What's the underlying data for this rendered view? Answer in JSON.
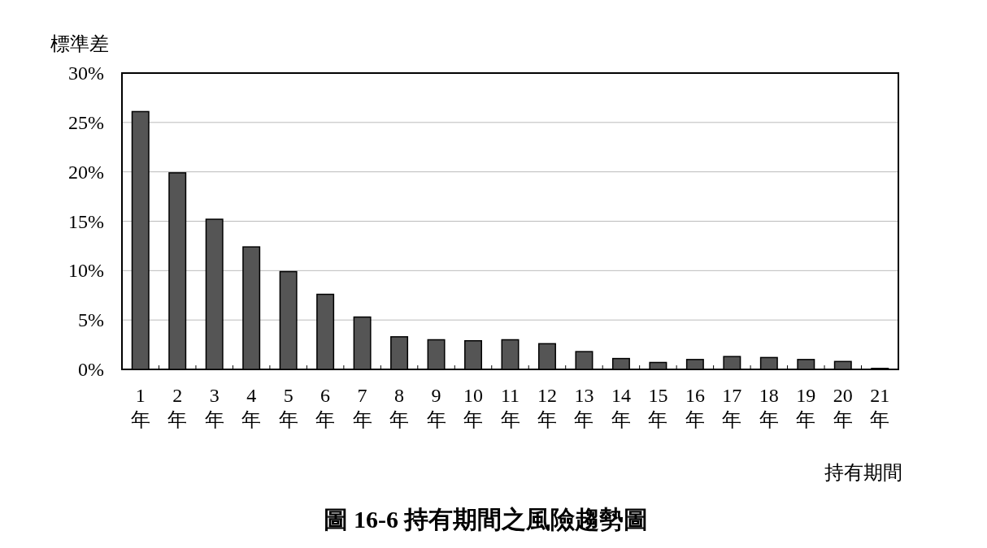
{
  "chart_data": {
    "type": "bar",
    "title": "圖 16-6 持有期間之風險趨勢圖",
    "xlabel": "持有期間",
    "ylabel": "標準差",
    "categories": [
      "1\n年",
      "2\n年",
      "3\n年",
      "4\n年",
      "5\n年",
      "6\n年",
      "7\n年",
      "8\n年",
      "9\n年",
      "10\n年",
      "11\n年",
      "12\n年",
      "13\n年",
      "14\n年",
      "15\n年",
      "16\n年",
      "17\n年",
      "18\n年",
      "19\n年",
      "20\n年",
      "21\n年"
    ],
    "values": [
      26.1,
      19.9,
      15.2,
      12.4,
      9.9,
      7.6,
      5.3,
      3.3,
      3.0,
      2.9,
      3.0,
      2.6,
      1.8,
      1.1,
      0.7,
      1.0,
      1.3,
      1.2,
      1.0,
      0.8,
      0.1
    ],
    "color": "#555555",
    "ylim": [
      0,
      30
    ],
    "yticks": [
      {
        "value": 0,
        "label": "0%"
      },
      {
        "value": 5,
        "label": "5%"
      },
      {
        "value": 10,
        "label": "10%"
      },
      {
        "value": 15,
        "label": "15%"
      },
      {
        "value": 20,
        "label": "20%"
      },
      {
        "value": 25,
        "label": "25%"
      },
      {
        "value": 30,
        "label": "30%"
      }
    ],
    "grid": "y"
  }
}
